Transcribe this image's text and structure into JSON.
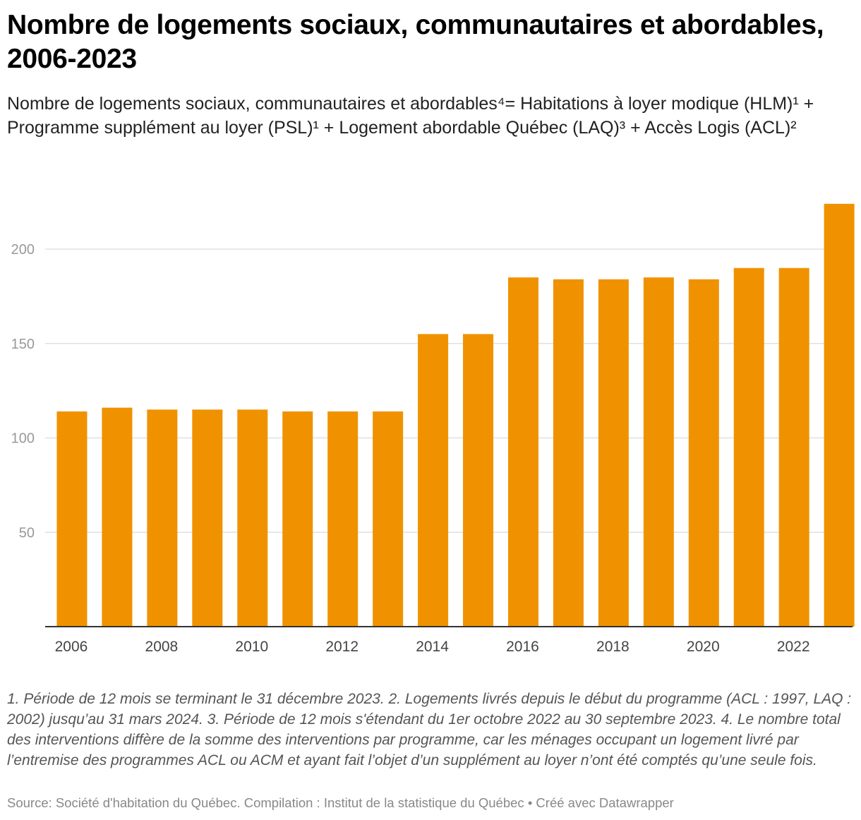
{
  "header": {
    "title": "Nombre de logements sociaux, communautaires et abordables, 2006-2023",
    "subtitle": "Nombre de logements sociaux, communautaires et abordables⁴= Habitations à loyer modique (HLM)¹ + Programme supplément au loyer (PSL)¹ + Logement abordable Québec (LAQ)³ + Accès Logis (ACL)²"
  },
  "footer": {
    "notes": "1. Période de 12 mois se terminant le 31 décembre 2023. 2. Logements livrés depuis le début du programme (ACL : 1997, LAQ : 2002) jusqu’au 31 mars 2024. 3. Période de 12 mois s'étendant du 1er octobre 2022 au 30 septembre 2023. 4. Le nombre total des interventions diffère de la somme des interventions par programme, car les ménages occupant un logement livré par l’entremise des programmes ACL ou ACM et ayant fait l’objet d’un supplément au loyer n’ont été comptés qu’une seule fois.",
    "source": "Source: Société d'habitation du Québec. Compilation : Institut de la statistique du Québec • Créé avec Datawrapper"
  },
  "colors": {
    "bar": "#f09200",
    "grid": "#e0e0e0",
    "baseline": "#333333"
  },
  "chart_data": {
    "type": "bar",
    "categories": [
      "2006",
      "2007",
      "2008",
      "2009",
      "2010",
      "2011",
      "2012",
      "2013",
      "2014",
      "2015",
      "2016",
      "2017",
      "2018",
      "2019",
      "2020",
      "2021",
      "2022",
      "2023"
    ],
    "values": [
      114,
      116,
      115,
      115,
      115,
      114,
      114,
      114,
      155,
      155,
      185,
      184,
      184,
      185,
      184,
      190,
      190,
      224
    ],
    "x_tick_labels": [
      "2006",
      "2008",
      "2010",
      "2012",
      "2014",
      "2016",
      "2018",
      "2020",
      "2022"
    ],
    "y_ticks": [
      50,
      100,
      150,
      200
    ],
    "ylim": [
      0,
      224
    ],
    "grid": true,
    "title": "Nombre de logements sociaux, communautaires et abordables, 2006-2023",
    "xlabel": "",
    "ylabel": ""
  }
}
